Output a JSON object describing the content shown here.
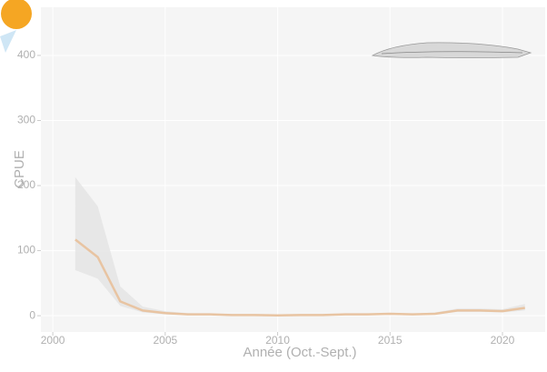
{
  "chart_data": {
    "type": "line",
    "x_label": "Année (Oct.-Sept.)",
    "y_label": "CPUE",
    "x": [
      2001,
      2002,
      2003,
      2004,
      2005,
      2006,
      2007,
      2008,
      2009,
      2010,
      2011,
      2012,
      2013,
      2014,
      2015,
      2016,
      2017,
      2018,
      2019,
      2020,
      2021
    ],
    "values": [
      117,
      90,
      22,
      8,
      4,
      2,
      2,
      1,
      1,
      0.5,
      1,
      1,
      2,
      2,
      3,
      2,
      3,
      8,
      8,
      7,
      12
    ],
    "upper": [
      213,
      168,
      45,
      14,
      7,
      4,
      3,
      2,
      2,
      1.5,
      2,
      2,
      3,
      3,
      4,
      3,
      5,
      11,
      11,
      10,
      18
    ],
    "lower": [
      70,
      57,
      15,
      5,
      2,
      1,
      1,
      0.5,
      0.5,
      0,
      0.5,
      0.5,
      1,
      1,
      2,
      1,
      2,
      6,
      6,
      5,
      8
    ],
    "color": "#e8c4a2",
    "band_color": "#e6e6e6",
    "xlim": [
      1999.47,
      2021.9
    ],
    "ylim": [
      -25,
      474
    ],
    "xticks": [
      2000,
      2005,
      2010,
      2015,
      2020
    ],
    "yticks": [
      0,
      100,
      200,
      300,
      400
    ],
    "grid": true
  }
}
